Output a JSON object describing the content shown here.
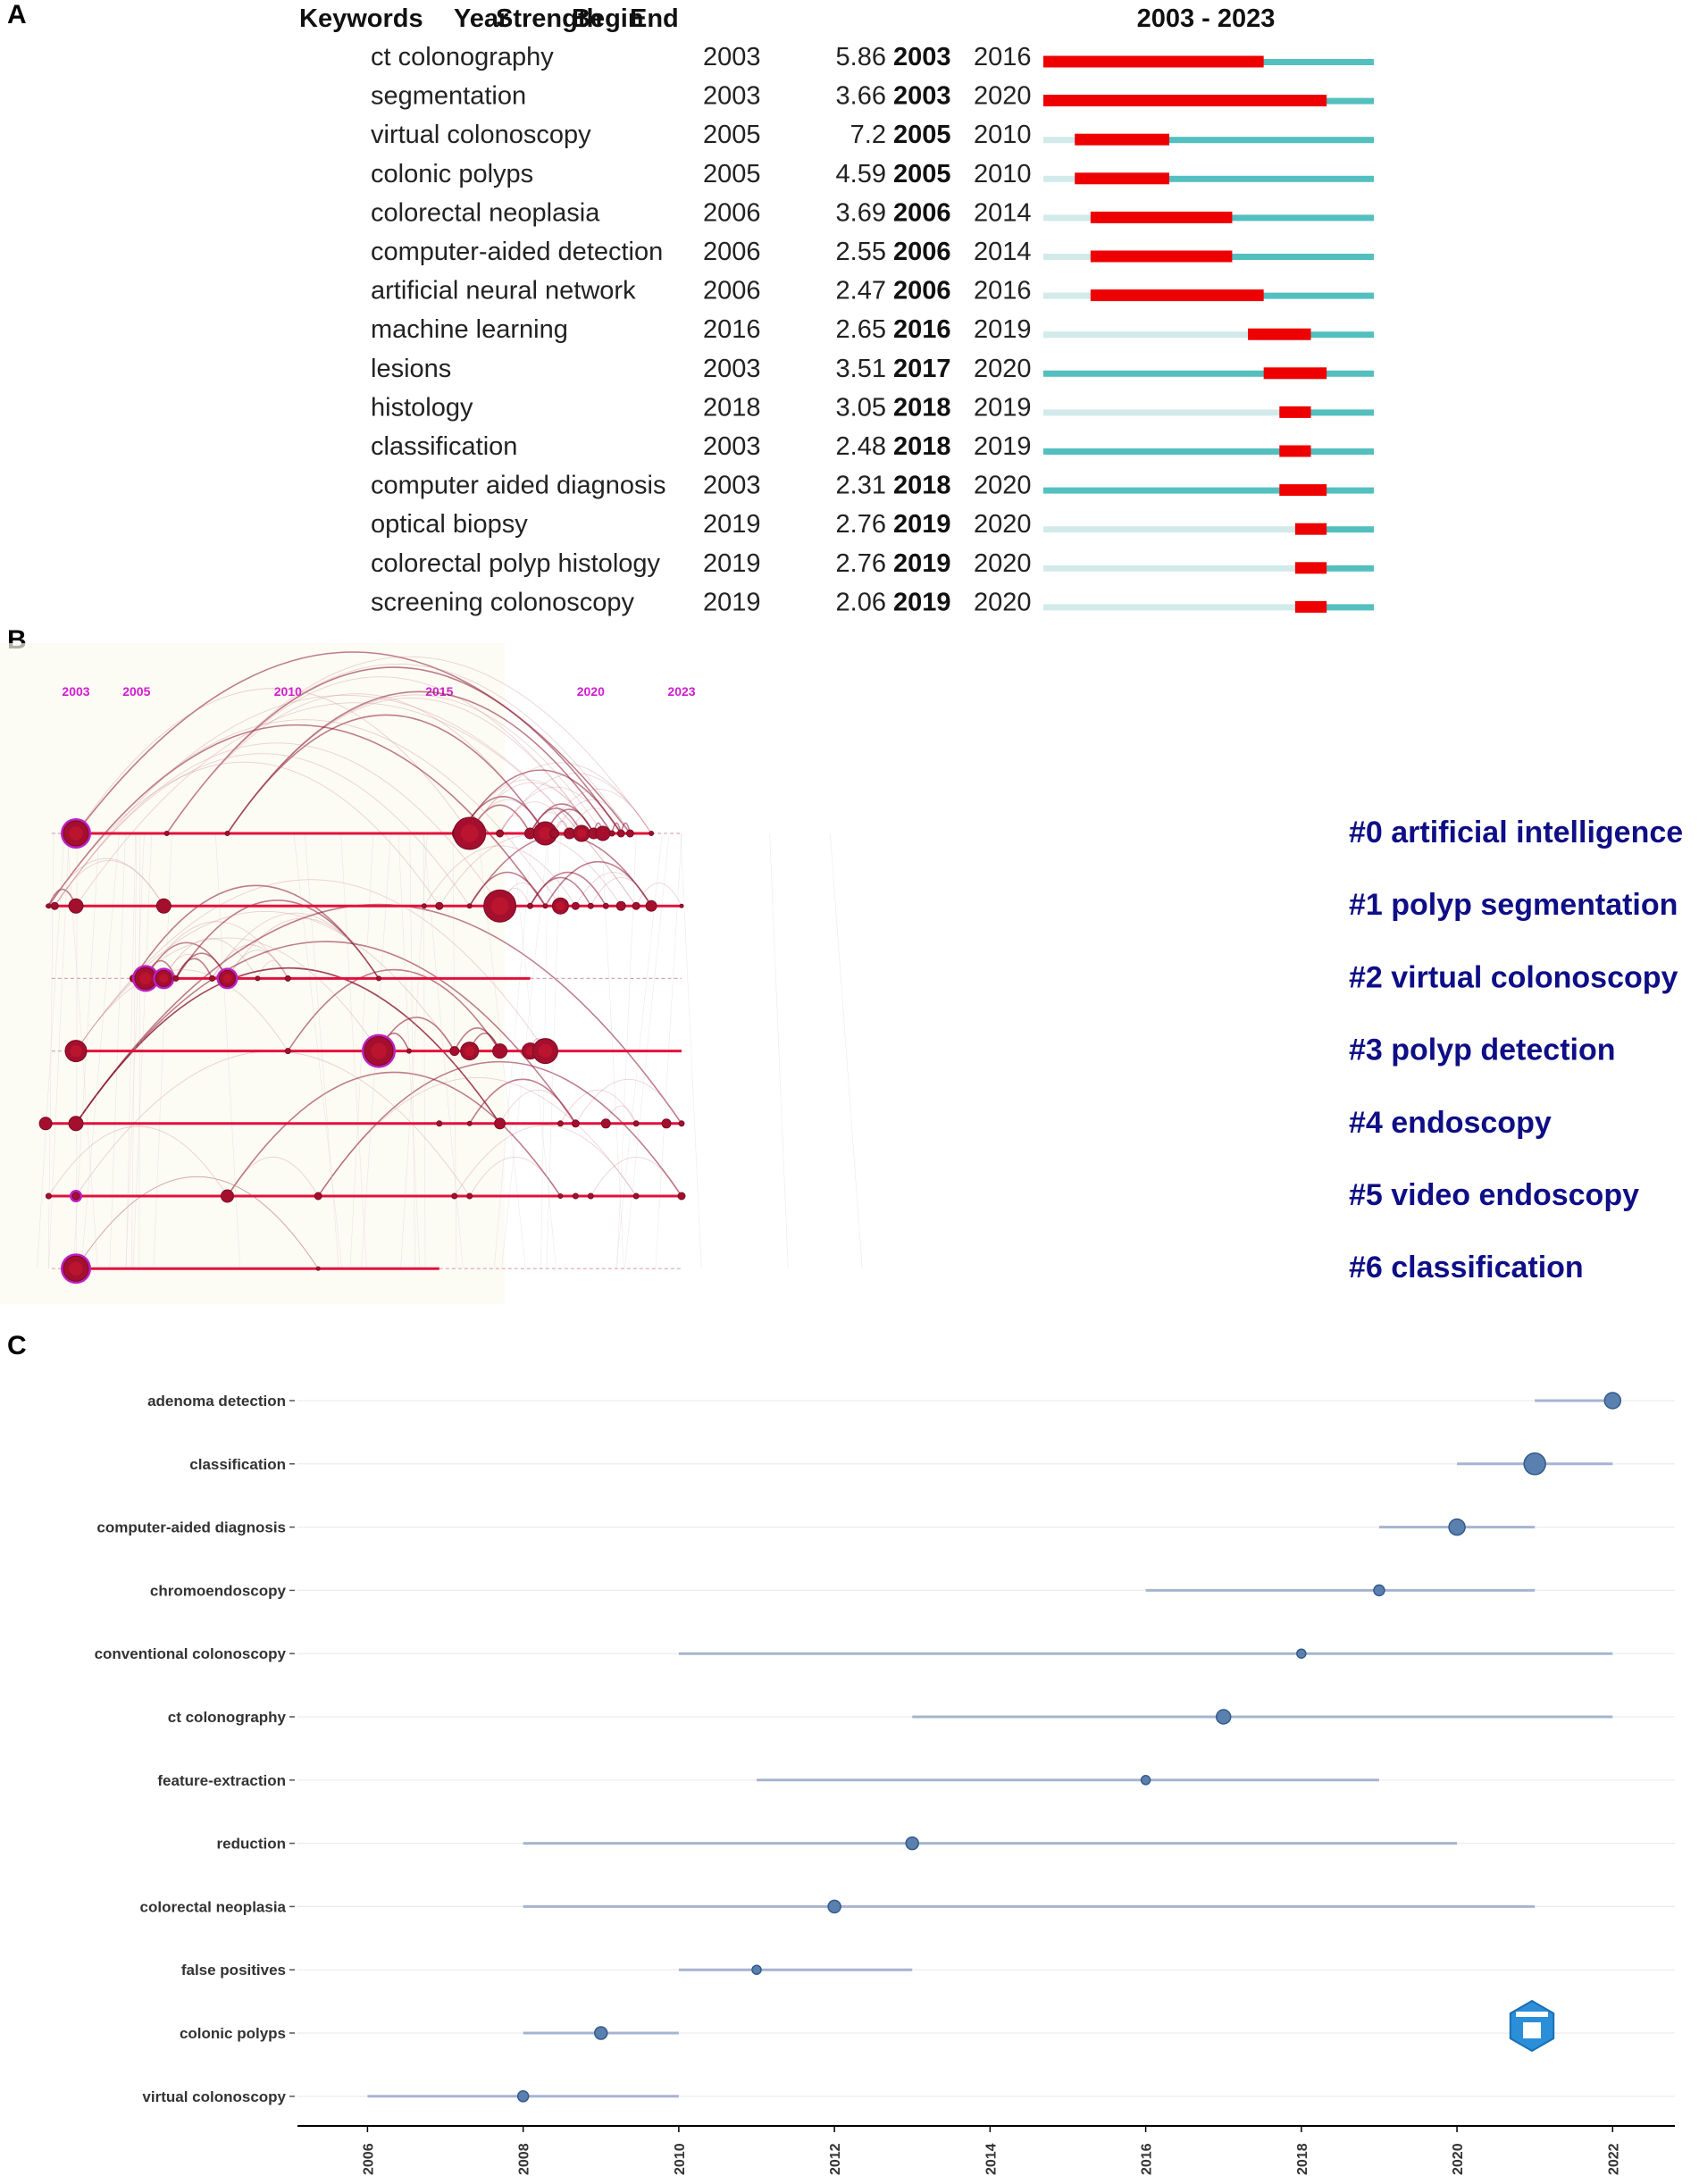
{
  "panels": {
    "a": "A",
    "b": "B",
    "c": "C"
  },
  "colors": {
    "burst": "#ee0000",
    "active": "#54bfbf",
    "inactive": "#d2eaea",
    "cluster_line": "#e3103c",
    "node": "#a40f2e",
    "node_ring": "#c01ec0",
    "year_label": "#d21bd2",
    "cluster_label": "#0e0e86",
    "dot": "#5a80b0",
    "dot_line": "#a7b4d0"
  },
  "chart_data": [
    {
      "type": "table",
      "name": "citation-bursts",
      "title": "2003 - 2023",
      "headers": [
        "Keywords",
        "Year",
        "Strength",
        "Begin",
        "End"
      ],
      "range": [
        2003,
        2023
      ],
      "rows": [
        {
          "keyword": "ct colonography",
          "year": 2003,
          "strength": "5.86",
          "begin": 2003,
          "end": 2016
        },
        {
          "keyword": "segmentation",
          "year": 2003,
          "strength": "3.66",
          "begin": 2003,
          "end": 2020
        },
        {
          "keyword": "virtual colonoscopy",
          "year": 2005,
          "strength": "7.2",
          "begin": 2005,
          "end": 2010
        },
        {
          "keyword": "colonic polyps",
          "year": 2005,
          "strength": "4.59",
          "begin": 2005,
          "end": 2010
        },
        {
          "keyword": "colorectal neoplasia",
          "year": 2006,
          "strength": "3.69",
          "begin": 2006,
          "end": 2014
        },
        {
          "keyword": "computer-aided detection",
          "year": 2006,
          "strength": "2.55",
          "begin": 2006,
          "end": 2014
        },
        {
          "keyword": "artificial neural network",
          "year": 2006,
          "strength": "2.47",
          "begin": 2006,
          "end": 2016
        },
        {
          "keyword": "machine learning",
          "year": 2016,
          "strength": "2.65",
          "begin": 2016,
          "end": 2019
        },
        {
          "keyword": "lesions",
          "year": 2003,
          "strength": "3.51",
          "begin": 2017,
          "end": 2020
        },
        {
          "keyword": "histology",
          "year": 2018,
          "strength": "3.05",
          "begin": 2018,
          "end": 2019
        },
        {
          "keyword": "classification",
          "year": 2003,
          "strength": "2.48",
          "begin": 2018,
          "end": 2019
        },
        {
          "keyword": "computer aided diagnosis",
          "year": 2003,
          "strength": "2.31",
          "begin": 2018,
          "end": 2020
        },
        {
          "keyword": "optical biopsy",
          "year": 2019,
          "strength": "2.76",
          "begin": 2019,
          "end": 2020
        },
        {
          "keyword": "colorectal polyp histology",
          "year": 2019,
          "strength": "2.76",
          "begin": 2019,
          "end": 2020
        },
        {
          "keyword": "screening colonoscopy",
          "year": 2019,
          "strength": "2.06",
          "begin": 2019,
          "end": 2020
        }
      ]
    },
    {
      "type": "scatter",
      "name": "timeline-view",
      "x_range": [
        2002,
        2023
      ],
      "year_ticks": [
        "2003",
        "2005",
        "2010",
        "2015",
        "2020",
        "2023"
      ],
      "clusters": [
        {
          "label": "#0 artificial intelligence",
          "start": 2003,
          "end": 2022,
          "nodes": [
            {
              "year": 2003,
              "r": 14,
              "ring": true
            },
            {
              "year": 2006,
              "r": 2.5
            },
            {
              "year": 2008,
              "r": 2.5
            },
            {
              "year": 2015.7,
              "r": 9
            },
            {
              "year": 2016.0,
              "r": 18
            },
            {
              "year": 2017,
              "r": 4
            },
            {
              "year": 2018.0,
              "r": 6
            },
            {
              "year": 2018.5,
              "r": 13
            },
            {
              "year": 2018.8,
              "r": 5
            },
            {
              "year": 2019.3,
              "r": 6
            },
            {
              "year": 2019.7,
              "r": 9
            },
            {
              "year": 2020.1,
              "r": 6
            },
            {
              "year": 2020.4,
              "r": 8
            },
            {
              "year": 2020.7,
              "r": 3
            },
            {
              "year": 2021.0,
              "r": 4
            },
            {
              "year": 2021.3,
              "r": 4
            },
            {
              "year": 2022,
              "r": 2.5
            }
          ]
        },
        {
          "label": "#1 polyp segmentation",
          "start": 2002,
          "end": 2023,
          "nodes": [
            {
              "year": 2002.1,
              "r": 2.5
            },
            {
              "year": 2002.3,
              "r": 4
            },
            {
              "year": 2003,
              "r": 8
            },
            {
              "year": 2005.9,
              "r": 8
            },
            {
              "year": 2014.5,
              "r": 2.5
            },
            {
              "year": 2015.0,
              "r": 4
            },
            {
              "year": 2016.0,
              "r": 2.5
            },
            {
              "year": 2017.0,
              "r": 18
            },
            {
              "year": 2018.0,
              "r": 3
            },
            {
              "year": 2018.5,
              "r": 2.5
            },
            {
              "year": 2019.0,
              "r": 9
            },
            {
              "year": 2019.5,
              "r": 4
            },
            {
              "year": 2020.0,
              "r": 3
            },
            {
              "year": 2020.5,
              "r": 3
            },
            {
              "year": 2021.0,
              "r": 5
            },
            {
              "year": 2021.5,
              "r": 4
            },
            {
              "year": 2022.0,
              "r": 6
            },
            {
              "year": 2023,
              "r": 2
            }
          ]
        },
        {
          "label": "#2 virtual colonoscopy",
          "start": 2005.0,
          "end": 2018.0,
          "nodes": [
            {
              "year": 2004.9,
              "r": 4
            },
            {
              "year": 2005.3,
              "r": 12,
              "ring": true
            },
            {
              "year": 2005.9,
              "r": 9,
              "ring": true
            },
            {
              "year": 2006.3,
              "r": 3
            },
            {
              "year": 2007.5,
              "r": 3
            },
            {
              "year": 2008.0,
              "r": 9,
              "ring": true
            },
            {
              "year": 2009.0,
              "r": 2.5
            },
            {
              "year": 2010.0,
              "r": 3
            },
            {
              "year": 2013.0,
              "r": 2.5
            }
          ]
        },
        {
          "label": "#3 polyp detection",
          "start": 2003,
          "end": 2023,
          "nodes": [
            {
              "year": 2003,
              "r": 12
            },
            {
              "year": 2010.0,
              "r": 3
            },
            {
              "year": 2013.0,
              "r": 16,
              "ring": true
            },
            {
              "year": 2014.0,
              "r": 2.5
            },
            {
              "year": 2015.5,
              "r": 5
            },
            {
              "year": 2016.0,
              "r": 10
            },
            {
              "year": 2017.0,
              "r": 8
            },
            {
              "year": 2018.0,
              "r": 9
            },
            {
              "year": 2018.5,
              "r": 14
            }
          ]
        },
        {
          "label": "#4 endoscopy",
          "start": 2002,
          "end": 2023,
          "nodes": [
            {
              "year": 2002.0,
              "r": 7
            },
            {
              "year": 2003,
              "r": 8
            },
            {
              "year": 2015.0,
              "r": 3
            },
            {
              "year": 2016.0,
              "r": 2.5
            },
            {
              "year": 2017.0,
              "r": 6
            },
            {
              "year": 2019.0,
              "r": 3
            },
            {
              "year": 2019.5,
              "r": 4
            },
            {
              "year": 2020.5,
              "r": 5
            },
            {
              "year": 2021.5,
              "r": 3
            },
            {
              "year": 2022.5,
              "r": 5
            },
            {
              "year": 2023,
              "r": 3
            }
          ]
        },
        {
          "label": "#5 video endoscopy",
          "start": 2002,
          "end": 2023,
          "nodes": [
            {
              "year": 2002.1,
              "r": 3
            },
            {
              "year": 2003,
              "r": 4,
              "ring": true
            },
            {
              "year": 2008.0,
              "r": 7
            },
            {
              "year": 2011.0,
              "r": 4
            },
            {
              "year": 2015.5,
              "r": 3
            },
            {
              "year": 2016.0,
              "r": 3
            },
            {
              "year": 2019.0,
              "r": 2.5
            },
            {
              "year": 2019.5,
              "r": 3
            },
            {
              "year": 2020.0,
              "r": 3
            },
            {
              "year": 2021.5,
              "r": 3
            },
            {
              "year": 2023,
              "r": 4
            }
          ]
        },
        {
          "label": "#6 classification",
          "start": 2003,
          "end": 2015,
          "nodes": [
            {
              "year": 2003,
              "r": 14,
              "ring": true
            },
            {
              "year": 2011.0,
              "r": 2
            }
          ]
        }
      ]
    },
    {
      "type": "scatter",
      "name": "trend-topics",
      "x_range": [
        2005.1,
        2022.8
      ],
      "x_ticks": [
        2006,
        2008,
        2010,
        2012,
        2014,
        2016,
        2018,
        2020,
        2022
      ],
      "series": [
        {
          "term": "adenoma detection",
          "low": 2021,
          "peak": 2022,
          "high": 2022,
          "r": 9
        },
        {
          "term": "classification",
          "low": 2020,
          "peak": 2021,
          "high": 2022,
          "r": 12
        },
        {
          "term": "computer-aided diagnosis",
          "low": 2019,
          "peak": 2020,
          "high": 2021,
          "r": 9
        },
        {
          "term": "chromoendoscopy",
          "low": 2016,
          "peak": 2019,
          "high": 2021,
          "r": 6
        },
        {
          "term": "conventional colonoscopy",
          "low": 2010,
          "peak": 2018,
          "high": 2022,
          "r": 5
        },
        {
          "term": "ct colonography",
          "low": 2013,
          "peak": 2017,
          "high": 2022,
          "r": 8
        },
        {
          "term": "feature-extraction",
          "low": 2011,
          "peak": 2016,
          "high": 2019,
          "r": 5
        },
        {
          "term": "reduction",
          "low": 2008,
          "peak": 2013,
          "high": 2020,
          "r": 7
        },
        {
          "term": "colorectal neoplasia",
          "low": 2008,
          "peak": 2012,
          "high": 2021,
          "r": 7
        },
        {
          "term": "false positives",
          "low": 2010,
          "peak": 2011,
          "high": 2013,
          "r": 5
        },
        {
          "term": "colonic polyps",
          "low": 2008,
          "peak": 2009,
          "high": 2010,
          "r": 7
        },
        {
          "term": "virtual colonoscopy",
          "low": 2006,
          "peak": 2008,
          "high": 2010,
          "r": 6
        }
      ]
    }
  ]
}
